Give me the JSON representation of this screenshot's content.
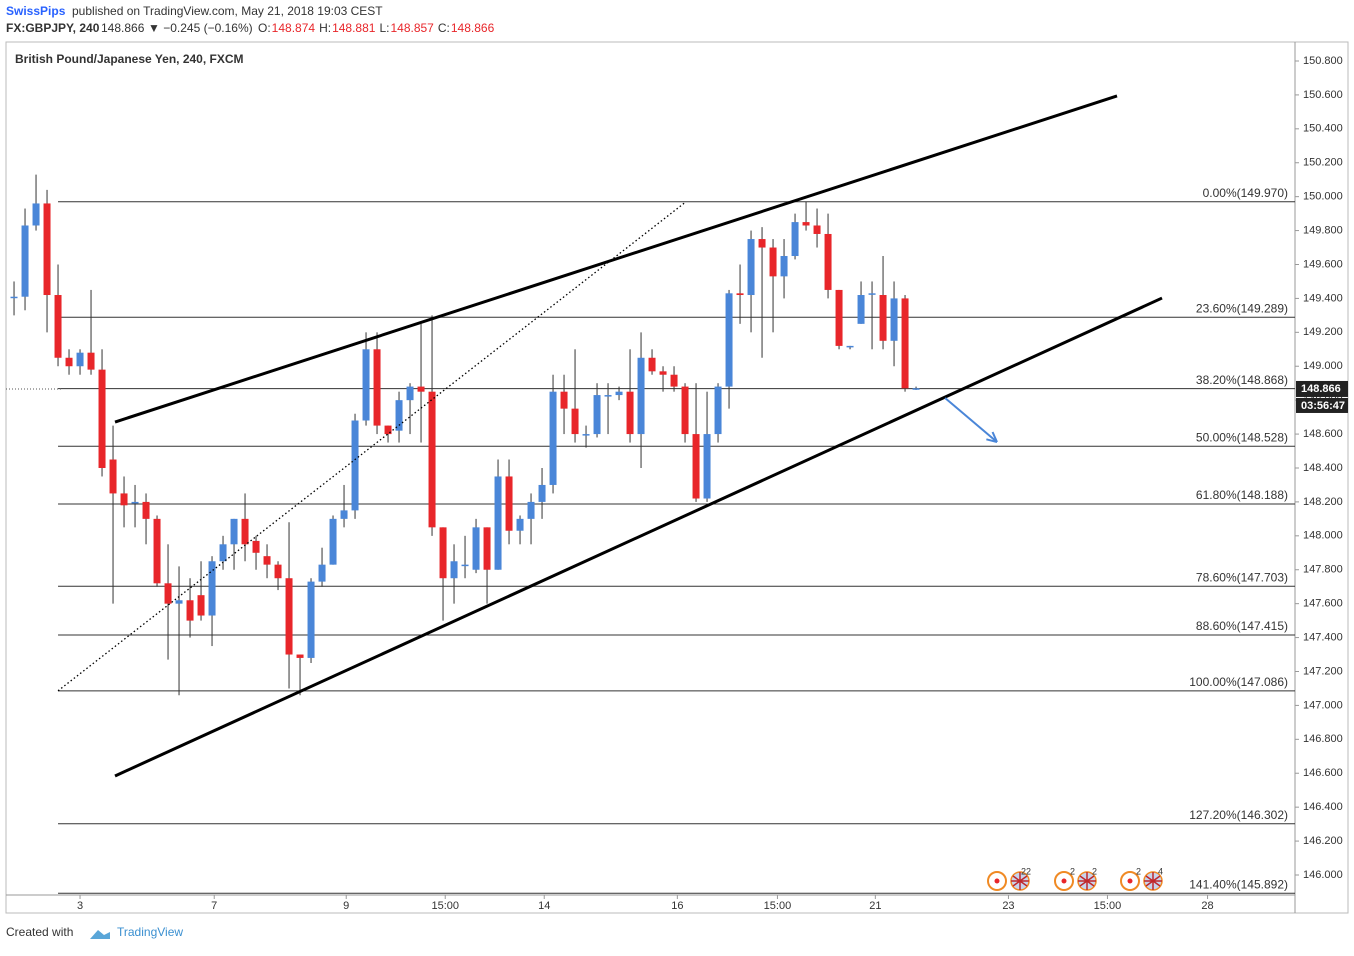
{
  "header": {
    "publisher": "SwissPips",
    "published": "published on TradingView.com, May 21, 2018 19:03 CEST",
    "symbol": "FX:GBPJPY, 240",
    "last": "148.866",
    "change": "▼ −0.245 (−0.16%)",
    "ohlc": [
      {
        "key": "O:",
        "value": "148.874"
      },
      {
        "key": "H:",
        "value": "148.881"
      },
      {
        "key": "L:",
        "value": "148.857"
      },
      {
        "key": "C:",
        "value": "148.866"
      }
    ]
  },
  "chart_data": {
    "type": "candlestick",
    "title": "British Pound/Japanese Yen, 240, FXCM",
    "up_color": "#4a86d8",
    "down_color": "#e8262a",
    "open": [
      149.41,
      149.41,
      149.83,
      149.96,
      149.42,
      149.05,
      149.0,
      149.08,
      148.98,
      148.45,
      148.25,
      148.2,
      148.2,
      148.1,
      147.72,
      147.6,
      147.62,
      147.65,
      147.53,
      147.85,
      147.95,
      148.1,
      147.97,
      147.88,
      147.83,
      147.75,
      147.3,
      147.28,
      147.73,
      147.83,
      148.1,
      148.15,
      148.68,
      149.1,
      148.65,
      148.62,
      148.8,
      148.88,
      148.85,
      148.05,
      147.75,
      147.83,
      147.8,
      148.05,
      147.8,
      148.35,
      148.03,
      148.1,
      148.2,
      148.3,
      148.85,
      148.75,
      148.6,
      148.6,
      148.83,
      148.83,
      148.85,
      148.6,
      149.05,
      148.97,
      148.95,
      148.88,
      148.6,
      148.22,
      148.6,
      148.88,
      149.43,
      149.42,
      149.75,
      149.7,
      149.53,
      149.65,
      149.85,
      149.83,
      149.78,
      149.45,
      149.12,
      149.25,
      149.43,
      149.42,
      149.15,
      149.4,
      148.87
    ],
    "high": [
      149.5,
      149.93,
      150.13,
      150.04,
      149.6,
      149.1,
      149.1,
      149.45,
      149.1,
      148.65,
      148.35,
      148.3,
      148.25,
      148.12,
      147.95,
      147.82,
      147.75,
      147.85,
      147.88,
      148.0,
      148.1,
      148.25,
      148.0,
      147.95,
      147.85,
      148.08,
      147.3,
      147.75,
      147.93,
      148.12,
      148.3,
      148.72,
      149.2,
      149.2,
      148.65,
      148.85,
      148.9,
      149.25,
      149.3,
      148.05,
      147.95,
      148.0,
      148.1,
      148.05,
      148.45,
      148.45,
      148.12,
      148.25,
      148.4,
      148.95,
      148.95,
      149.1,
      148.65,
      148.9,
      148.9,
      148.88,
      149.1,
      149.2,
      149.1,
      149.0,
      149.0,
      148.9,
      148.9,
      148.85,
      148.9,
      149.45,
      149.6,
      149.8,
      149.82,
      149.75,
      149.75,
      149.9,
      149.97,
      149.93,
      149.9,
      149.45,
      149.12,
      149.5,
      149.5,
      149.65,
      149.5,
      149.42,
      148.88
    ],
    "low": [
      149.3,
      149.33,
      149.8,
      149.2,
      149.0,
      148.95,
      148.95,
      148.95,
      148.35,
      147.6,
      148.05,
      148.05,
      147.95,
      147.7,
      147.27,
      147.06,
      147.4,
      147.5,
      147.35,
      147.8,
      147.8,
      147.85,
      147.8,
      147.75,
      147.68,
      147.1,
      147.06,
      147.25,
      147.7,
      147.83,
      148.05,
      148.1,
      148.65,
      148.6,
      148.55,
      148.55,
      148.6,
      148.55,
      148.0,
      147.5,
      147.6,
      147.75,
      147.78,
      147.6,
      147.8,
      147.95,
      147.95,
      147.95,
      148.1,
      148.25,
      148.6,
      148.55,
      148.52,
      148.58,
      148.6,
      148.8,
      148.55,
      148.4,
      148.95,
      148.85,
      148.85,
      148.55,
      148.2,
      148.2,
      148.55,
      148.75,
      149.25,
      149.2,
      149.05,
      149.2,
      149.4,
      149.63,
      149.8,
      149.7,
      149.4,
      149.1,
      149.1,
      149.25,
      149.1,
      149.1,
      149.0,
      148.85,
      148.86
    ],
    "close": [
      149.41,
      149.83,
      149.96,
      149.42,
      149.05,
      149.0,
      149.08,
      148.98,
      148.4,
      148.25,
      148.18,
      148.2,
      148.1,
      147.72,
      147.6,
      147.62,
      147.5,
      147.53,
      147.85,
      147.95,
      148.1,
      147.95,
      147.9,
      147.83,
      147.75,
      147.3,
      147.28,
      147.73,
      147.83,
      148.1,
      148.15,
      148.68,
      149.1,
      148.65,
      148.6,
      148.8,
      148.88,
      148.85,
      148.05,
      147.75,
      147.85,
      147.83,
      148.05,
      147.8,
      148.35,
      148.03,
      148.1,
      148.2,
      148.3,
      148.85,
      148.75,
      148.6,
      148.6,
      148.83,
      148.83,
      148.85,
      148.6,
      149.05,
      148.97,
      148.95,
      148.88,
      148.6,
      148.22,
      148.6,
      148.88,
      149.43,
      149.42,
      149.75,
      149.7,
      149.53,
      149.65,
      149.85,
      149.83,
      149.78,
      149.45,
      149.12,
      149.12,
      149.42,
      149.43,
      149.15,
      149.4,
      148.87,
      148.87
    ],
    "xlim": [
      -0.73,
      116.45
    ],
    "ylim": [
      145.882,
      150.912
    ],
    "xticks": [
      {
        "value": 6,
        "label": "3"
      },
      {
        "value": 18.2,
        "label": "7"
      },
      {
        "value": 30.2,
        "label": "9"
      },
      {
        "value": 39.2,
        "label": "15:00"
      },
      {
        "value": 48.2,
        "label": "14"
      },
      {
        "value": 60.3,
        "label": "16"
      },
      {
        "value": 69.4,
        "label": "15:00"
      },
      {
        "value": 78.3,
        "label": "21"
      },
      {
        "value": 90.4,
        "label": "23"
      },
      {
        "value": 99.4,
        "label": "15:00"
      },
      {
        "value": 108.5,
        "label": "28"
      }
    ],
    "yticks": [
      {
        "value": 146,
        "label": "146.000"
      },
      {
        "value": 146.2,
        "label": "146.200"
      },
      {
        "value": 146.4,
        "label": "146.400"
      },
      {
        "value": 146.6,
        "label": "146.600"
      },
      {
        "value": 146.8,
        "label": "146.800"
      },
      {
        "value": 147,
        "label": "147.000"
      },
      {
        "value": 147.2,
        "label": "147.200"
      },
      {
        "value": 147.4,
        "label": "147.400"
      },
      {
        "value": 147.6,
        "label": "147.600"
      },
      {
        "value": 147.8,
        "label": "147.800"
      },
      {
        "value": 148,
        "label": "148.000"
      },
      {
        "value": 148.2,
        "label": "148.200"
      },
      {
        "value": 148.4,
        "label": "148.400"
      },
      {
        "value": 148.6,
        "label": "148.600"
      },
      {
        "value": 148.8,
        "label": "148.800"
      },
      {
        "value": 149,
        "label": "149.000"
      },
      {
        "value": 149.2,
        "label": "149.200"
      },
      {
        "value": 149.4,
        "label": "149.400"
      },
      {
        "value": 149.6,
        "label": "149.600"
      },
      {
        "value": 149.8,
        "label": "149.800"
      },
      {
        "value": 150,
        "label": "150.000"
      },
      {
        "value": 150.2,
        "label": "150.200"
      },
      {
        "value": 150.4,
        "label": "150.400"
      },
      {
        "value": 150.6,
        "label": "150.600"
      },
      {
        "value": 150.8,
        "label": "150.800"
      }
    ],
    "fib_levels": [
      {
        "value": 149.97,
        "label": "0.00%(149.970)"
      },
      {
        "value": 149.289,
        "label": "23.60%(149.289)"
      },
      {
        "value": 148.868,
        "label": "38.20%(148.868)"
      },
      {
        "value": 148.528,
        "label": "50.00%(148.528)"
      },
      {
        "value": 148.188,
        "label": "61.80%(148.188)"
      },
      {
        "value": 147.703,
        "label": "78.60%(147.703)"
      },
      {
        "value": 147.415,
        "label": "88.60%(147.415)"
      },
      {
        "value": 147.086,
        "label": "100.00%(147.086)"
      },
      {
        "value": 146.302,
        "label": "127.20%(146.302)"
      },
      {
        "value": 145.892,
        "label": "141.40%(145.892)"
      }
    ],
    "drawings": [
      {
        "style": "solid",
        "color": "#000000",
        "x": [
          9.18,
          100.27
        ],
        "y": [
          148.671,
          150.594
        ]
      },
      {
        "style": "solid",
        "color": "#000000",
        "x": [
          9.18,
          104.36
        ],
        "y": [
          146.584,
          149.402
        ]
      },
      {
        "style": "dotted",
        "color": "#000000",
        "x": [
          4,
          61.09
        ],
        "y": [
          147.086,
          149.97
        ]
      },
      {
        "style": "arrow",
        "color": "#4a86d8",
        "x": [
          84.64,
          89.36
        ],
        "y": [
          148.813,
          148.553
        ]
      }
    ],
    "last_price": 148.866,
    "countdown": "03:56:47",
    "event_labels": [
      "22",
      "2",
      "2",
      "2",
      "4"
    ]
  },
  "footer": {
    "created": "Created with",
    "brand": "TradingView"
  }
}
